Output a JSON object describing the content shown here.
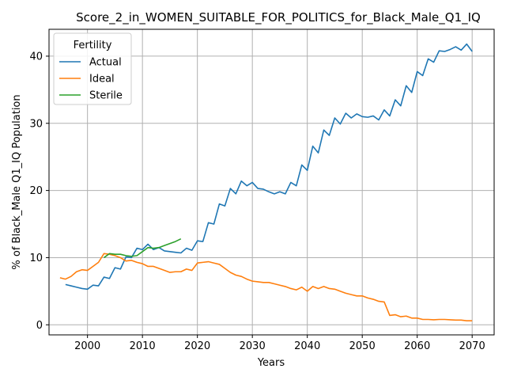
{
  "chart_data": {
    "type": "line",
    "title": "Score_2_in_WOMEN_SUITABLE_FOR_POLITICS_for_Black_Male_Q1_IQ",
    "xlabel": "Years",
    "ylabel": "% of Black_Male Q1_IQ Population",
    "xlim": [
      1993,
      2074
    ],
    "ylim": [
      -1.5,
      44
    ],
    "xticks": [
      2000,
      2010,
      2020,
      2030,
      2040,
      2050,
      2060,
      2070
    ],
    "yticks": [
      0,
      10,
      20,
      30,
      40
    ],
    "grid": true,
    "legend": {
      "title": "Fertility",
      "placement": "upper-left"
    },
    "series": [
      {
        "name": "Actual",
        "color": "#1f77b4",
        "x": [
          1996,
          1997,
          1998,
          1999,
          2000,
          2001,
          2002,
          2003,
          2004,
          2005,
          2006,
          2007,
          2008,
          2009,
          2010,
          2011,
          2012,
          2013,
          2014,
          2015,
          2016,
          2017,
          2018,
          2019,
          2020,
          2021,
          2022,
          2023,
          2024,
          2025,
          2026,
          2027,
          2028,
          2029,
          2030,
          2031,
          2032,
          2033,
          2034,
          2035,
          2036,
          2037,
          2038,
          2039,
          2040,
          2041,
          2042,
          2043,
          2044,
          2045,
          2046,
          2047,
          2048,
          2049,
          2050,
          2051,
          2052,
          2053,
          2054,
          2055,
          2056,
          2057,
          2058,
          2059,
          2060,
          2061,
          2062,
          2063,
          2064,
          2065,
          2066,
          2067,
          2068,
          2069,
          2070
        ],
        "y": [
          6.0,
          5.8,
          5.6,
          5.4,
          5.3,
          5.9,
          5.8,
          7.1,
          6.9,
          8.5,
          8.3,
          10.1,
          10.0,
          11.4,
          11.2,
          12.0,
          11.2,
          11.5,
          11.0,
          10.9,
          10.8,
          10.7,
          11.4,
          11.1,
          12.5,
          12.4,
          15.2,
          15.0,
          18.0,
          17.7,
          20.3,
          19.5,
          21.4,
          20.7,
          21.2,
          20.3,
          20.2,
          19.8,
          19.5,
          19.8,
          19.5,
          21.2,
          20.7,
          23.8,
          23.0,
          26.6,
          25.6,
          29.0,
          28.2,
          30.8,
          29.9,
          31.5,
          30.8,
          31.4,
          31.0,
          30.9,
          31.1,
          30.5,
          32.0,
          31.1,
          33.5,
          32.6,
          35.6,
          34.6,
          37.7,
          37.1,
          39.6,
          39.1,
          40.8,
          40.7,
          41.0,
          41.4,
          40.9,
          41.8,
          40.7
        ]
      },
      {
        "name": "Ideal",
        "color": "#ff7f0e",
        "x": [
          1995,
          1996,
          1997,
          1998,
          1999,
          2000,
          2001,
          2002,
          2003,
          2004,
          2005,
          2006,
          2007,
          2008,
          2009,
          2010,
          2011,
          2012,
          2013,
          2014,
          2015,
          2016,
          2017,
          2018,
          2019,
          2020,
          2021,
          2022,
          2023,
          2024,
          2025,
          2026,
          2027,
          2028,
          2029,
          2030,
          2031,
          2032,
          2033,
          2034,
          2035,
          2036,
          2037,
          2038,
          2039,
          2040,
          2041,
          2042,
          2043,
          2044,
          2045,
          2046,
          2047,
          2048,
          2049,
          2050,
          2051,
          2052,
          2053,
          2054,
          2055,
          2056,
          2057,
          2058,
          2059,
          2060,
          2061,
          2062,
          2063,
          2064,
          2065,
          2066,
          2067,
          2068,
          2069,
          2070
        ],
        "y": [
          7.0,
          6.8,
          7.2,
          7.9,
          8.2,
          8.1,
          8.7,
          9.3,
          10.6,
          10.5,
          10.3,
          10.0,
          9.5,
          9.6,
          9.3,
          9.1,
          8.7,
          8.7,
          8.4,
          8.1,
          7.8,
          7.9,
          7.9,
          8.3,
          8.1,
          9.2,
          9.3,
          9.4,
          9.2,
          9.0,
          8.4,
          7.8,
          7.4,
          7.2,
          6.8,
          6.5,
          6.4,
          6.3,
          6.3,
          6.1,
          5.9,
          5.7,
          5.4,
          5.2,
          5.6,
          5.0,
          5.7,
          5.4,
          5.7,
          5.4,
          5.3,
          5.0,
          4.7,
          4.5,
          4.3,
          4.3,
          4.0,
          3.8,
          3.5,
          3.4,
          1.4,
          1.5,
          1.2,
          1.3,
          1.0,
          1.0,
          0.8,
          0.8,
          0.75,
          0.8,
          0.8,
          0.75,
          0.7,
          0.7,
          0.6,
          0.6
        ]
      },
      {
        "name": "Sterile",
        "color": "#2ca02c",
        "x": [
          2003,
          2004,
          2005,
          2006,
          2007,
          2008,
          2009,
          2010,
          2011,
          2012,
          2013,
          2014,
          2015,
          2016,
          2017
        ],
        "y": [
          10.0,
          10.6,
          10.5,
          10.5,
          10.3,
          10.2,
          10.3,
          10.9,
          11.5,
          11.4,
          11.5,
          11.8,
          12.1,
          12.4,
          12.8
        ]
      }
    ]
  }
}
